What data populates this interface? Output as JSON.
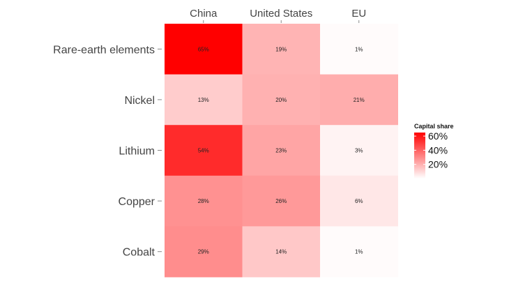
{
  "chart_data": {
    "type": "heatmap",
    "title": "",
    "xlabel": "",
    "ylabel": "",
    "x_categories": [
      "China",
      "United States",
      "EU"
    ],
    "y_categories": [
      "Rare-earth elements",
      "Nickel",
      "Lithium",
      "Copper",
      "Cobalt"
    ],
    "values": [
      [
        65,
        19,
        1
      ],
      [
        13,
        20,
        21
      ],
      [
        54,
        23,
        3
      ],
      [
        28,
        26,
        6
      ],
      [
        29,
        14,
        1
      ]
    ],
    "cell_labels": [
      [
        "65%",
        "19%",
        "1%"
      ],
      [
        "13%",
        "20%",
        "21%"
      ],
      [
        "54%",
        "23%",
        "3%"
      ],
      [
        "28%",
        "26%",
        "6%"
      ],
      [
        "29%",
        "14%",
        "1%"
      ]
    ],
    "value_range": [
      0,
      65
    ],
    "color_low": "#ffffff",
    "color_high": "#ff0000",
    "grid": false,
    "legend": {
      "title": "Capital share",
      "placement": "right",
      "ticks": [
        60,
        40,
        20
      ],
      "tick_labels": [
        "60%",
        "40%",
        "20%"
      ]
    }
  }
}
